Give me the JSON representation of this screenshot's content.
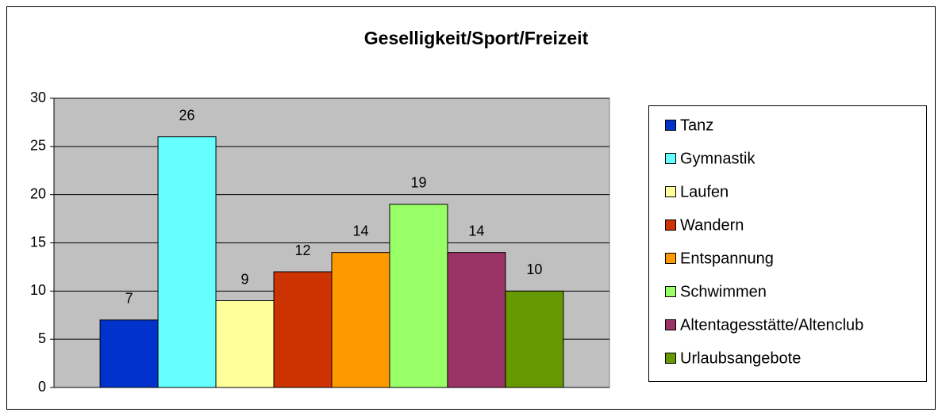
{
  "chart_data": {
    "type": "bar",
    "title": "Geselligkeit/Sport/Freizeit",
    "categories": [
      null
    ],
    "series": [
      {
        "name": "Tanz",
        "color": "#0033cc",
        "values": [
          7
        ]
      },
      {
        "name": "Gymnastik",
        "color": "#66ffff",
        "values": [
          26
        ]
      },
      {
        "name": "Laufen",
        "color": "#ffff99",
        "values": [
          9
        ]
      },
      {
        "name": "Wandern",
        "color": "#cc3300",
        "values": [
          12
        ]
      },
      {
        "name": "Entspannung",
        "color": "#ff9900",
        "values": [
          14
        ]
      },
      {
        "name": "Schwimmen",
        "color": "#99ff66",
        "values": [
          19
        ]
      },
      {
        "name": "Altentagesstätte/Altenclub",
        "color": "#993366",
        "values": [
          14
        ]
      },
      {
        "name": "Urlaubsangebote",
        "color": "#669900",
        "values": [
          10
        ]
      }
    ],
    "ylim": [
      0,
      30
    ],
    "yticks": [
      0,
      5,
      10,
      15,
      20,
      25,
      30
    ],
    "grid": true,
    "legend": "right"
  }
}
